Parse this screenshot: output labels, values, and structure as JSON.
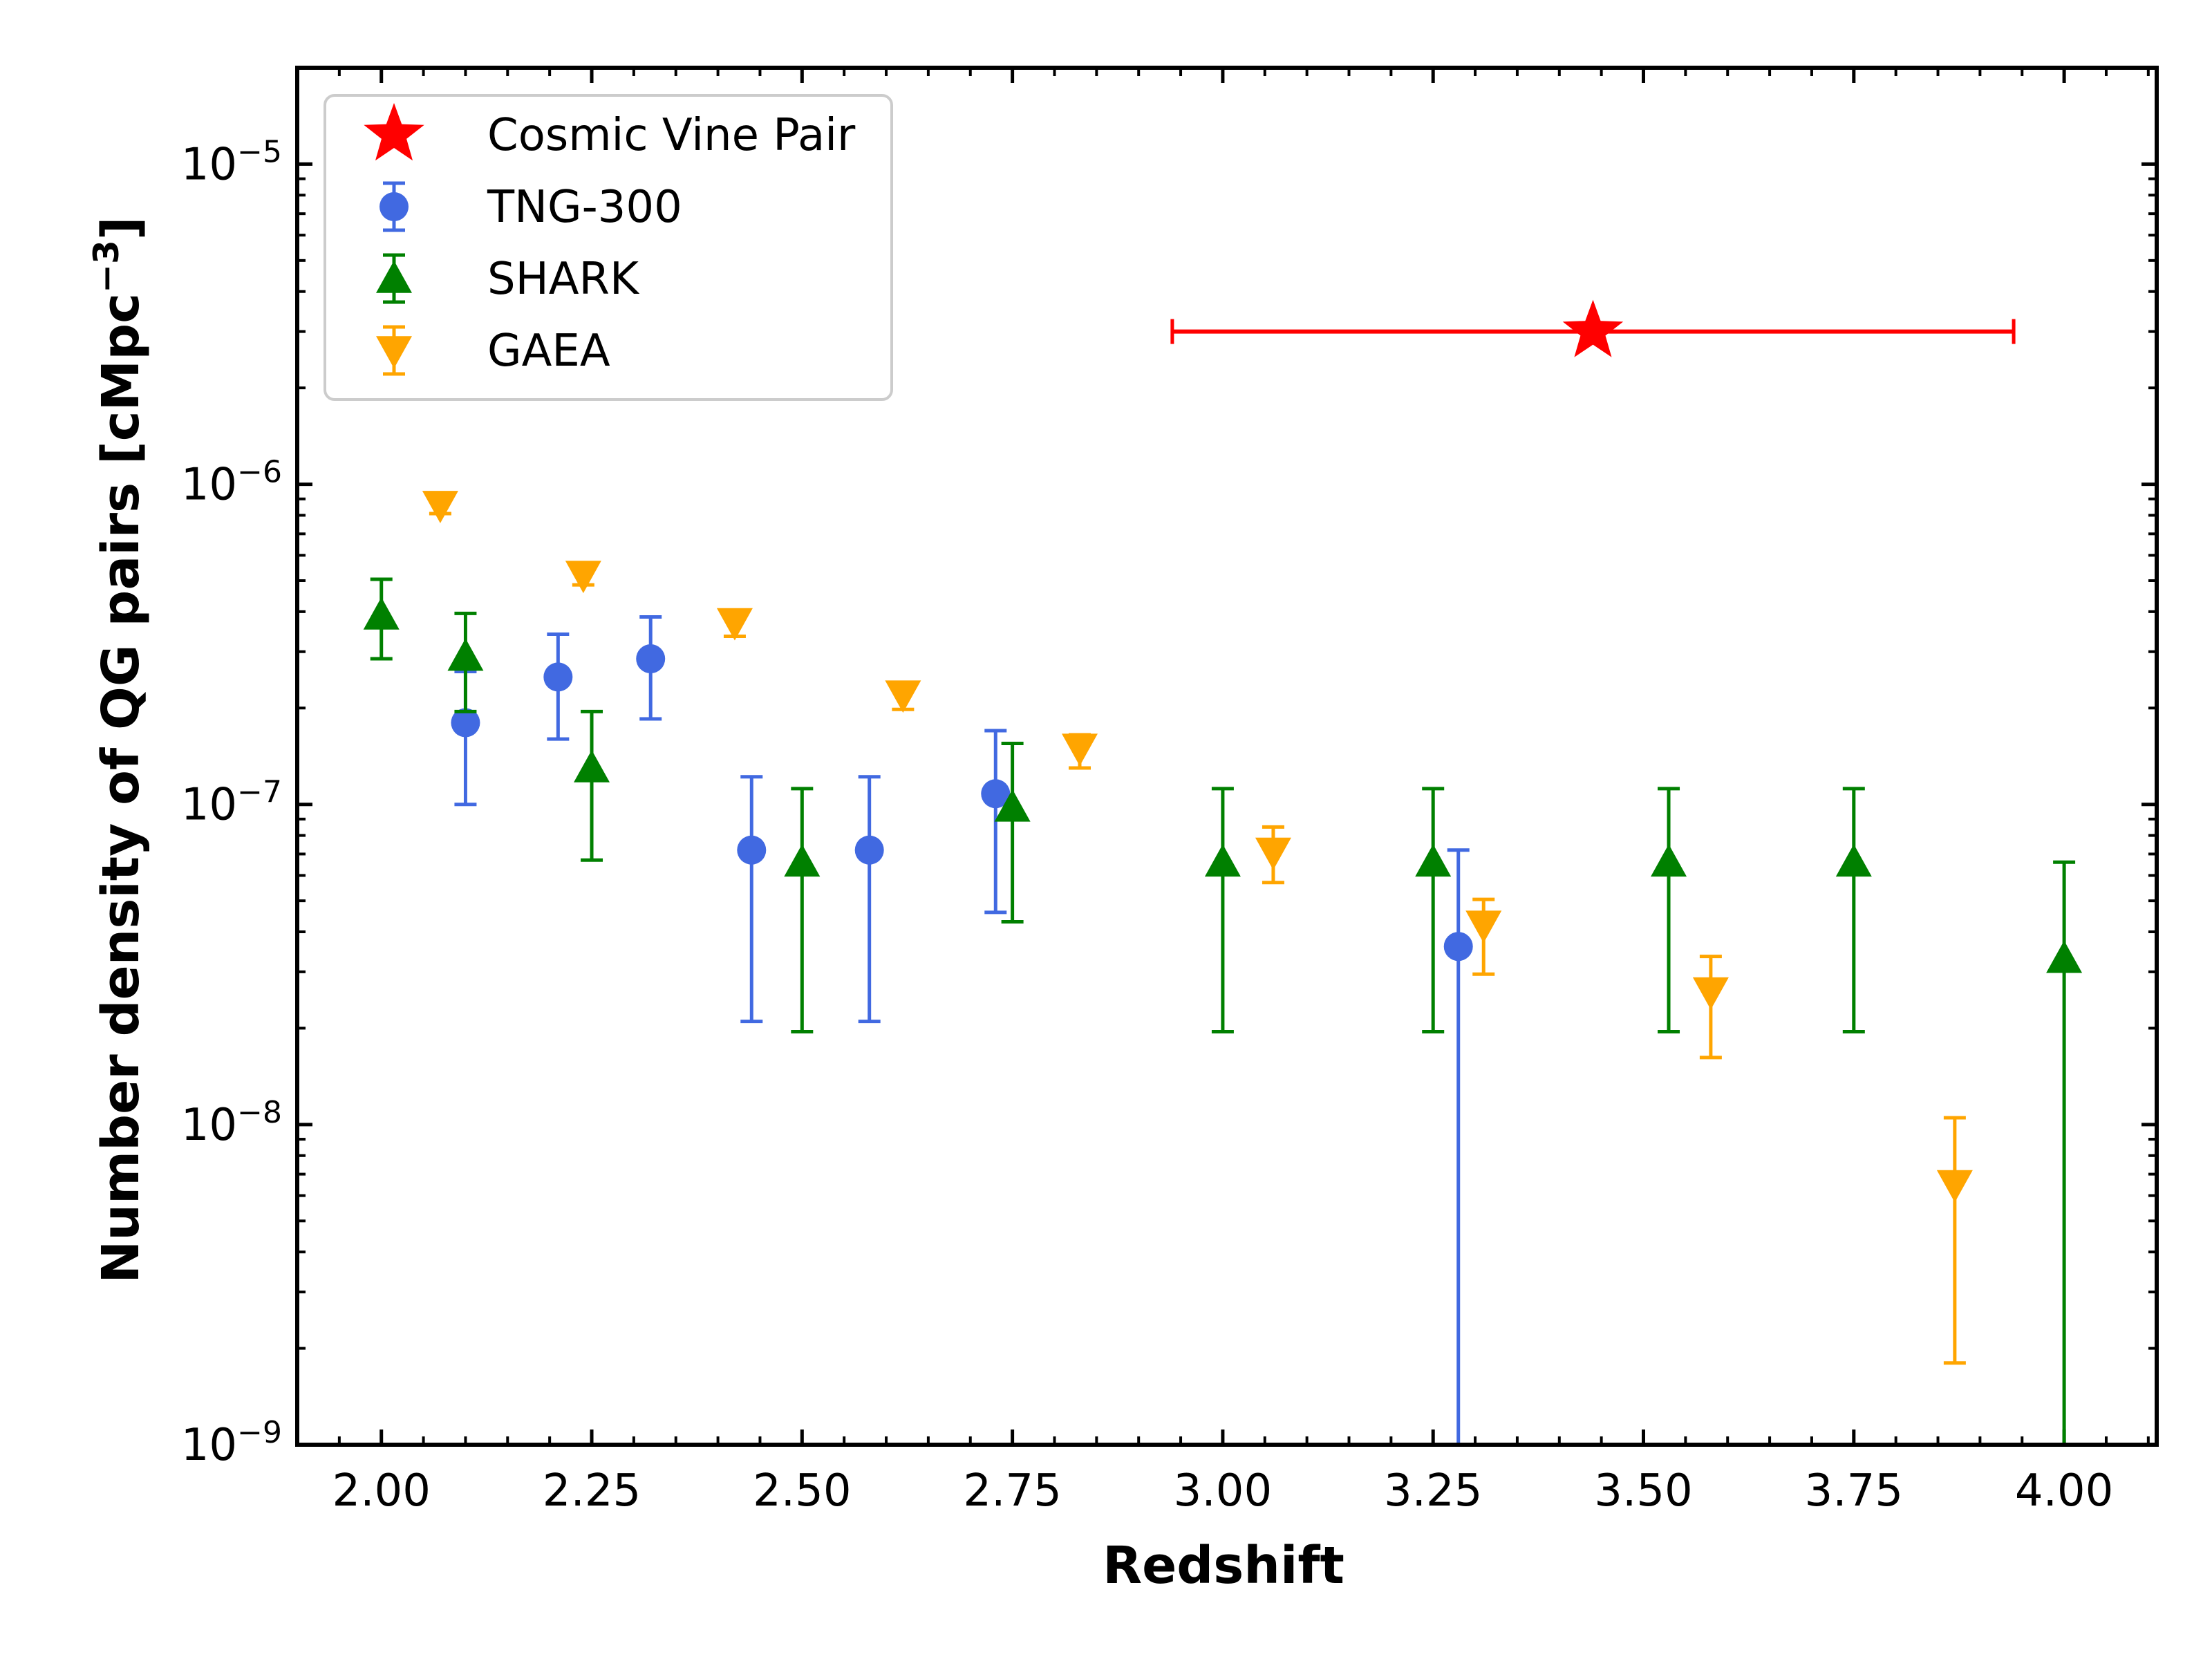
{
  "chart_data": {
    "type": "scatter",
    "title": "",
    "xlabel": "Redshift",
    "ylabel": "Number density of QG pairs [cMpc",
    "ylabel_unit_exponent": "−3",
    "ylabel_close": "]",
    "xlim": [
      1.9,
      4.11
    ],
    "ylim": [
      1e-09,
      2e-05
    ],
    "yscale": "log",
    "x_ticks": [
      "2.00",
      "2.25",
      "2.50",
      "2.75",
      "3.00",
      "3.25",
      "3.50",
      "3.75",
      "4.00"
    ],
    "y_ticks": [
      {
        "base": "10",
        "exp": "−5",
        "value": 1e-05
      },
      {
        "base": "10",
        "exp": "−6",
        "value": 1e-06
      },
      {
        "base": "10",
        "exp": "−7",
        "value": 1e-07
      },
      {
        "base": "10",
        "exp": "−8",
        "value": 1e-08
      },
      {
        "base": "10",
        "exp": "−9",
        "value": 1e-09
      }
    ],
    "legend_position": "top-left",
    "series": [
      {
        "name": "Cosmic Vine Pair",
        "marker": "star",
        "color": "#ff0000",
        "points": [
          {
            "x": 3.44,
            "y": 3e-06,
            "xlo": 2.94,
            "xhi": 3.94
          }
        ]
      },
      {
        "name": "TNG-300",
        "marker": "circle",
        "color": "#4169e1",
        "points": [
          {
            "x": 2.1,
            "y": 1.8e-07,
            "ylo": 1e-07,
            "yhi": 2.6e-07
          },
          {
            "x": 2.21,
            "y": 2.5e-07,
            "ylo": 1.6e-07,
            "yhi": 3.4e-07
          },
          {
            "x": 2.32,
            "y": 2.85e-07,
            "ylo": 1.85e-07,
            "yhi": 3.85e-07
          },
          {
            "x": 2.44,
            "y": 7.2e-08,
            "ylo": 2.1e-08,
            "yhi": 1.22e-07
          },
          {
            "x": 2.58,
            "y": 7.2e-08,
            "ylo": 2.1e-08,
            "yhi": 1.22e-07
          },
          {
            "x": 2.73,
            "y": 1.08e-07,
            "ylo": 4.6e-08,
            "yhi": 1.7e-07
          },
          {
            "x": 3.28,
            "y": 3.6e-08,
            "ylo": 1e-09,
            "yhi": 7.2e-08
          }
        ]
      },
      {
        "name": "SHARK",
        "marker": "triangle-up",
        "color": "#008000",
        "points": [
          {
            "x": 2.0,
            "y": 3.9e-07,
            "ylo": 2.85e-07,
            "yhi": 5.05e-07
          },
          {
            "x": 2.1,
            "y": 2.9e-07,
            "ylo": 1.95e-07,
            "yhi": 3.95e-07
          },
          {
            "x": 2.25,
            "y": 1.3e-07,
            "ylo": 6.7e-08,
            "yhi": 1.95e-07
          },
          {
            "x": 2.5,
            "y": 6.6e-08,
            "ylo": 1.95e-08,
            "yhi": 1.12e-07
          },
          {
            "x": 2.75,
            "y": 9.8e-08,
            "ylo": 4.3e-08,
            "yhi": 1.55e-07
          },
          {
            "x": 3.0,
            "y": 6.6e-08,
            "ylo": 1.95e-08,
            "yhi": 1.12e-07
          },
          {
            "x": 3.25,
            "y": 6.6e-08,
            "ylo": 1.95e-08,
            "yhi": 1.12e-07
          },
          {
            "x": 3.53,
            "y": 6.6e-08,
            "ylo": 1.95e-08,
            "yhi": 1.12e-07
          },
          {
            "x": 3.75,
            "y": 6.6e-08,
            "ylo": 1.95e-08,
            "yhi": 1.12e-07
          },
          {
            "x": 4.0,
            "y": 3.3e-08,
            "ylo": 1e-09,
            "yhi": 6.6e-08
          }
        ]
      },
      {
        "name": "GAEA",
        "marker": "triangle-down",
        "color": "#ffa500",
        "points": [
          {
            "x": 2.07,
            "y": 8.6e-07,
            "ylo": 8.1e-07,
            "yhi": 9e-07
          },
          {
            "x": 2.24,
            "y": 5.2e-07,
            "ylo": 4.85e-07,
            "yhi": 5.55e-07
          },
          {
            "x": 2.42,
            "y": 3.7e-07,
            "ylo": 3.35e-07,
            "yhi": 3.95e-07
          },
          {
            "x": 2.62,
            "y": 2.2e-07,
            "ylo": 1.98e-07,
            "yhi": 2.38e-07
          },
          {
            "x": 2.83,
            "y": 1.5e-07,
            "ylo": 1.3e-07,
            "yhi": 1.65e-07
          },
          {
            "x": 3.06,
            "y": 7.1e-08,
            "ylo": 5.7e-08,
            "yhi": 8.5e-08
          },
          {
            "x": 3.31,
            "y": 4.2e-08,
            "ylo": 2.95e-08,
            "yhi": 5.05e-08
          },
          {
            "x": 3.58,
            "y": 2.6e-08,
            "ylo": 1.62e-08,
            "yhi": 3.35e-08
          },
          {
            "x": 3.87,
            "y": 6.5e-09,
            "ylo": 1.8e-09,
            "yhi": 1.05e-08
          }
        ]
      }
    ]
  }
}
